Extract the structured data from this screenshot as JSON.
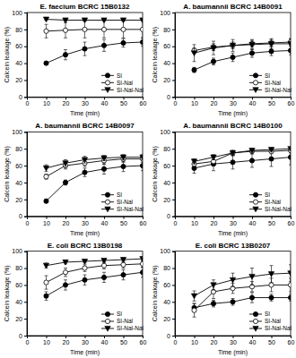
{
  "chart_data": [
    {
      "type": "line",
      "title": "E. faecium BCRC 15B0132",
      "x_label": "Time (min)",
      "y_label": "Calcein leakage (%)",
      "x": [
        10,
        20,
        30,
        40,
        50,
        60
      ],
      "xlim": [
        0,
        60
      ],
      "xticks": [
        0,
        10,
        20,
        30,
        40,
        50,
        60
      ],
      "ylim": [
        0,
        100
      ],
      "yticks": [
        0,
        20,
        40,
        60,
        80,
        100
      ],
      "legend": "lower right",
      "series": [
        {
          "name": "SI",
          "color": "#000000",
          "marker": "circle",
          "values": [
            40,
            50,
            57,
            61,
            64,
            65
          ],
          "errors": [
            2,
            6,
            8,
            7,
            5,
            5
          ]
        },
        {
          "name": "SI-Nal",
          "color": "#000000",
          "marker": "open-circle",
          "values": [
            78,
            79,
            80,
            80,
            80,
            80
          ],
          "errors": [
            8,
            9,
            10,
            10,
            10,
            10
          ]
        },
        {
          "name": "SI-Nal-Nal",
          "color": "#000000",
          "marker": "triangle-down",
          "values": [
            92,
            91,
            91,
            91,
            91,
            91
          ],
          "errors": [
            1,
            1,
            1,
            1,
            1,
            1
          ]
        }
      ]
    },
    {
      "type": "line",
      "title": "A. baumannii BCRC 14B0091",
      "x_label": "Time (min)",
      "y_label": "Calcein leakage (%)",
      "x": [
        10,
        20,
        30,
        40,
        50,
        60
      ],
      "xlim": [
        0,
        60
      ],
      "xticks": [
        0,
        10,
        20,
        30,
        40,
        50,
        60
      ],
      "ylim": [
        0,
        100
      ],
      "yticks": [
        0,
        20,
        40,
        60,
        80,
        100
      ],
      "legend": "lower right",
      "series": [
        {
          "name": "SI",
          "color": "#000000",
          "marker": "circle",
          "values": [
            32,
            42,
            47,
            52,
            54,
            55
          ],
          "errors": [
            3,
            4,
            5,
            5,
            5,
            5
          ]
        },
        {
          "name": "SI-Nal",
          "color": "#000000",
          "marker": "open-circle",
          "values": [
            55,
            59,
            61,
            63,
            64,
            65
          ],
          "errors": [
            3,
            4,
            4,
            4,
            4,
            4
          ]
        },
        {
          "name": "SI-Nal-Nal",
          "color": "#000000",
          "marker": "triangle-down",
          "values": [
            52,
            58,
            61,
            62,
            63,
            63
          ],
          "errors": [
            10,
            8,
            7,
            6,
            6,
            6
          ]
        }
      ]
    },
    {
      "type": "line",
      "title": "A. baumannii BCRC 14B0097",
      "x_label": "Time (min)",
      "y_label": "Calcein leakage (%)",
      "x": [
        10,
        20,
        30,
        40,
        50,
        60
      ],
      "xlim": [
        0,
        60
      ],
      "xticks": [
        0,
        10,
        20,
        30,
        40,
        50,
        60
      ],
      "ylim": [
        0,
        100
      ],
      "yticks": [
        0,
        20,
        40,
        60,
        80,
        100
      ],
      "legend": "lower right",
      "series": [
        {
          "name": "SI",
          "color": "#000000",
          "marker": "circle",
          "values": [
            18,
            40,
            52,
            56,
            59,
            60
          ],
          "errors": [
            2,
            3,
            5,
            6,
            6,
            6
          ]
        },
        {
          "name": "SI-Nal",
          "color": "#000000",
          "marker": "open-circle",
          "values": [
            47,
            60,
            63,
            66,
            68,
            68
          ],
          "errors": [
            3,
            4,
            4,
            4,
            4,
            4
          ]
        },
        {
          "name": "SI-Nal-Nal",
          "color": "#000000",
          "marker": "triangle-down",
          "values": [
            57,
            63,
            67,
            69,
            70,
            70
          ],
          "errors": [
            4,
            4,
            4,
            3,
            3,
            3
          ]
        }
      ]
    },
    {
      "type": "line",
      "title": "A. baumannii BCRC 14B0100",
      "x_label": "Time (min)",
      "y_label": "Calcein leakage (%)",
      "x": [
        10,
        20,
        30,
        40,
        50,
        60
      ],
      "xlim": [
        0,
        60
      ],
      "xticks": [
        0,
        10,
        20,
        30,
        40,
        50,
        60
      ],
      "ylim": [
        0,
        100
      ],
      "yticks": [
        0,
        20,
        40,
        60,
        80,
        100
      ],
      "legend": "lower right",
      "series": [
        {
          "name": "SI",
          "color": "#000000",
          "marker": "circle",
          "values": [
            57,
            62,
            64,
            66,
            68,
            70
          ],
          "errors": [
            6,
            8,
            8,
            8,
            9,
            9
          ]
        },
        {
          "name": "SI-Nal",
          "color": "#000000",
          "marker": "open-circle",
          "values": [
            62,
            65,
            75,
            77,
            77,
            78
          ],
          "errors": [
            4,
            4,
            3,
            3,
            3,
            3
          ]
        },
        {
          "name": "SI-Nal-Nal",
          "color": "#000000",
          "marker": "triangle-down",
          "values": [
            65,
            70,
            75,
            78,
            79,
            80
          ],
          "errors": [
            3,
            3,
            3,
            2,
            2,
            2
          ]
        }
      ]
    },
    {
      "type": "line",
      "title": "E. coli BCRC 13B0198",
      "x_label": "Time (min)",
      "y_label": "Calcein leakage (%)",
      "x": [
        10,
        20,
        30,
        40,
        50,
        60
      ],
      "xlim": [
        0,
        60
      ],
      "xticks": [
        0,
        10,
        20,
        30,
        40,
        50,
        60
      ],
      "ylim": [
        0,
        100
      ],
      "yticks": [
        0,
        20,
        40,
        60,
        80,
        100
      ],
      "legend": "lower right",
      "series": [
        {
          "name": "SI",
          "color": "#000000",
          "marker": "circle",
          "values": [
            47,
            60,
            66,
            69,
            72,
            75
          ],
          "errors": [
            5,
            6,
            6,
            6,
            6,
            6
          ]
        },
        {
          "name": "SI-Nal",
          "color": "#000000",
          "marker": "open-circle",
          "values": [
            63,
            75,
            80,
            83,
            84,
            85
          ],
          "errors": [
            8,
            5,
            4,
            4,
            4,
            4
          ]
        },
        {
          "name": "SI-Nal-Nal",
          "color": "#000000",
          "marker": "triangle-down",
          "values": [
            83,
            87,
            88,
            89,
            90,
            91
          ],
          "errors": [
            3,
            2,
            2,
            2,
            2,
            2
          ]
        }
      ]
    },
    {
      "type": "line",
      "title": "E. coli BCRC 13B0207",
      "x_label": "Time (min)",
      "y_label": "Calcein leakage (%)",
      "x": [
        10,
        20,
        30,
        40,
        50,
        60
      ],
      "xlim": [
        0,
        60
      ],
      "xticks": [
        0,
        10,
        20,
        30,
        40,
        50,
        60
      ],
      "ylim": [
        0,
        100
      ],
      "yticks": [
        0,
        20,
        40,
        60,
        80,
        100
      ],
      "legend": "lower right",
      "series": [
        {
          "name": "SI",
          "color": "#000000",
          "marker": "circle",
          "values": [
            33,
            38,
            40,
            45,
            45,
            45
          ],
          "errors": [
            5,
            4,
            4,
            6,
            4,
            4
          ]
        },
        {
          "name": "SI-Nal",
          "color": "#000000",
          "marker": "open-circle",
          "values": [
            30,
            52,
            56,
            58,
            60,
            60
          ],
          "errors": [
            8,
            8,
            6,
            6,
            8,
            8
          ]
        },
        {
          "name": "SI-Nal-Nal",
          "color": "#000000",
          "marker": "triangle-down",
          "values": [
            47,
            60,
            66,
            70,
            73,
            74
          ],
          "errors": [
            6,
            6,
            8,
            10,
            10,
            10
          ]
        }
      ]
    }
  ]
}
